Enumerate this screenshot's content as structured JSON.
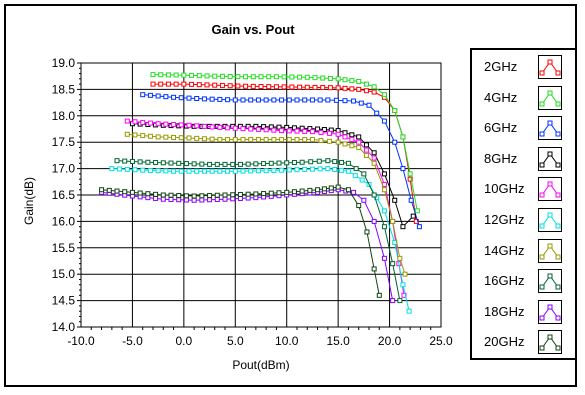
{
  "chart_data": {
    "type": "line",
    "title": "Gain vs. Pout",
    "xlabel": "Pout(dBm)",
    "ylabel": "Gain(dB)",
    "xlim": [
      -10,
      25
    ],
    "ylim": [
      14.0,
      19.0
    ],
    "xticks": [
      "-10.0",
      "-5.0",
      "0.0",
      "5.0",
      "10.0",
      "15.0",
      "20.0",
      "25.0"
    ],
    "yticks": [
      "14.0",
      "14.5",
      "15.0",
      "15.5",
      "16.0",
      "16.5",
      "17.0",
      "17.5",
      "18.0",
      "18.5",
      "19.0"
    ],
    "grid": true,
    "legend_position": "right",
    "series": [
      {
        "name": "2GHz",
        "color": "#ff0000",
        "x": [
          -3,
          0,
          3,
          6,
          9,
          12,
          15,
          17,
          18.5,
          19.5,
          20.5,
          21.3,
          22,
          22.6
        ],
        "y": [
          18.6,
          18.6,
          18.58,
          18.56,
          18.55,
          18.54,
          18.53,
          18.5,
          18.45,
          18.35,
          18.1,
          17.6,
          16.8,
          16.0
        ]
      },
      {
        "name": "4GHz",
        "color": "#22dd22",
        "x": [
          -3,
          0,
          3,
          6,
          9,
          12,
          15,
          17,
          18.5,
          19.5,
          20.5,
          21.3,
          22,
          22.7
        ],
        "y": [
          18.78,
          18.77,
          18.75,
          18.74,
          18.74,
          18.73,
          18.7,
          18.65,
          18.55,
          18.4,
          18.1,
          17.6,
          16.9,
          16.2
        ]
      },
      {
        "name": "6GHz",
        "color": "#0033ff",
        "x": [
          -4,
          -1,
          2,
          5,
          8,
          11,
          14,
          16.5,
          18,
          19.5,
          20.5,
          21.3,
          22.1,
          22.9
        ],
        "y": [
          18.4,
          18.35,
          18.32,
          18.3,
          18.3,
          18.3,
          18.3,
          18.28,
          18.2,
          17.9,
          17.5,
          17.0,
          16.4,
          15.9
        ]
      },
      {
        "name": "8GHz",
        "color": "#000000",
        "x": [
          -5,
          -2,
          1,
          4,
          7,
          10,
          13,
          15,
          17,
          18.5,
          19.5,
          20.5,
          21.3,
          22.3
        ],
        "y": [
          17.85,
          17.82,
          17.8,
          17.8,
          17.8,
          17.78,
          17.75,
          17.72,
          17.6,
          17.3,
          16.9,
          16.4,
          15.9,
          16.1
        ]
      },
      {
        "name": "10GHz",
        "color": "#ff00ff",
        "x": [
          -5.5,
          -2.5,
          0.5,
          3.5,
          6.5,
          9.5,
          12.5,
          15,
          17,
          18.5,
          19.5,
          20.3,
          20.9,
          21.4
        ],
        "y": [
          17.9,
          17.85,
          17.82,
          17.78,
          17.75,
          17.72,
          17.7,
          17.65,
          17.5,
          17.2,
          16.7,
          16.0,
          15.2,
          14.6
        ]
      },
      {
        "name": "12GHz",
        "color": "#00e0e0",
        "x": [
          -7,
          -4,
          -1,
          2,
          5,
          8,
          11,
          14,
          16,
          18,
          19.5,
          20.5,
          21.3,
          21.9
        ],
        "y": [
          17.0,
          16.97,
          16.95,
          16.95,
          16.95,
          16.96,
          16.98,
          17.0,
          16.95,
          16.7,
          16.2,
          15.6,
          14.8,
          14.3
        ]
      },
      {
        "name": "14GHz",
        "color": "#999900",
        "x": [
          -5.5,
          -2.5,
          0.5,
          3.5,
          6.5,
          9.5,
          12.5,
          15,
          17,
          18.5,
          19.5,
          20.3,
          21,
          21.5
        ],
        "y": [
          17.65,
          17.6,
          17.58,
          17.55,
          17.55,
          17.55,
          17.55,
          17.5,
          17.4,
          17.1,
          16.6,
          16.0,
          15.3,
          15.0
        ]
      },
      {
        "name": "16GHz",
        "color": "#006633",
        "x": [
          -6.5,
          -3.5,
          -0.5,
          2.5,
          5.5,
          8.5,
          11.5,
          14,
          16,
          17.5,
          18.5,
          19.5,
          20.3,
          21
        ],
        "y": [
          17.15,
          17.12,
          17.1,
          17.08,
          17.08,
          17.1,
          17.12,
          17.15,
          17.1,
          16.9,
          16.5,
          15.9,
          15.2,
          14.5
        ]
      },
      {
        "name": "18GHz",
        "color": "#8800ff",
        "x": [
          -8,
          -5,
          -2,
          1,
          4,
          7,
          10,
          13,
          15,
          16.5,
          17.5,
          18.5,
          19.5,
          20.3
        ],
        "y": [
          16.55,
          16.48,
          16.42,
          16.4,
          16.42,
          16.45,
          16.5,
          16.55,
          16.6,
          16.55,
          16.4,
          16.0,
          15.3,
          14.5
        ]
      },
      {
        "name": "20GHz",
        "color": "#114411",
        "x": [
          -8,
          -5,
          -2,
          1,
          4,
          7,
          10,
          13,
          15,
          16,
          17,
          17.8,
          18.5,
          19
        ],
        "y": [
          16.6,
          16.55,
          16.5,
          16.48,
          16.5,
          16.52,
          16.55,
          16.6,
          16.65,
          16.6,
          16.3,
          15.8,
          15.1,
          14.6
        ]
      }
    ]
  }
}
